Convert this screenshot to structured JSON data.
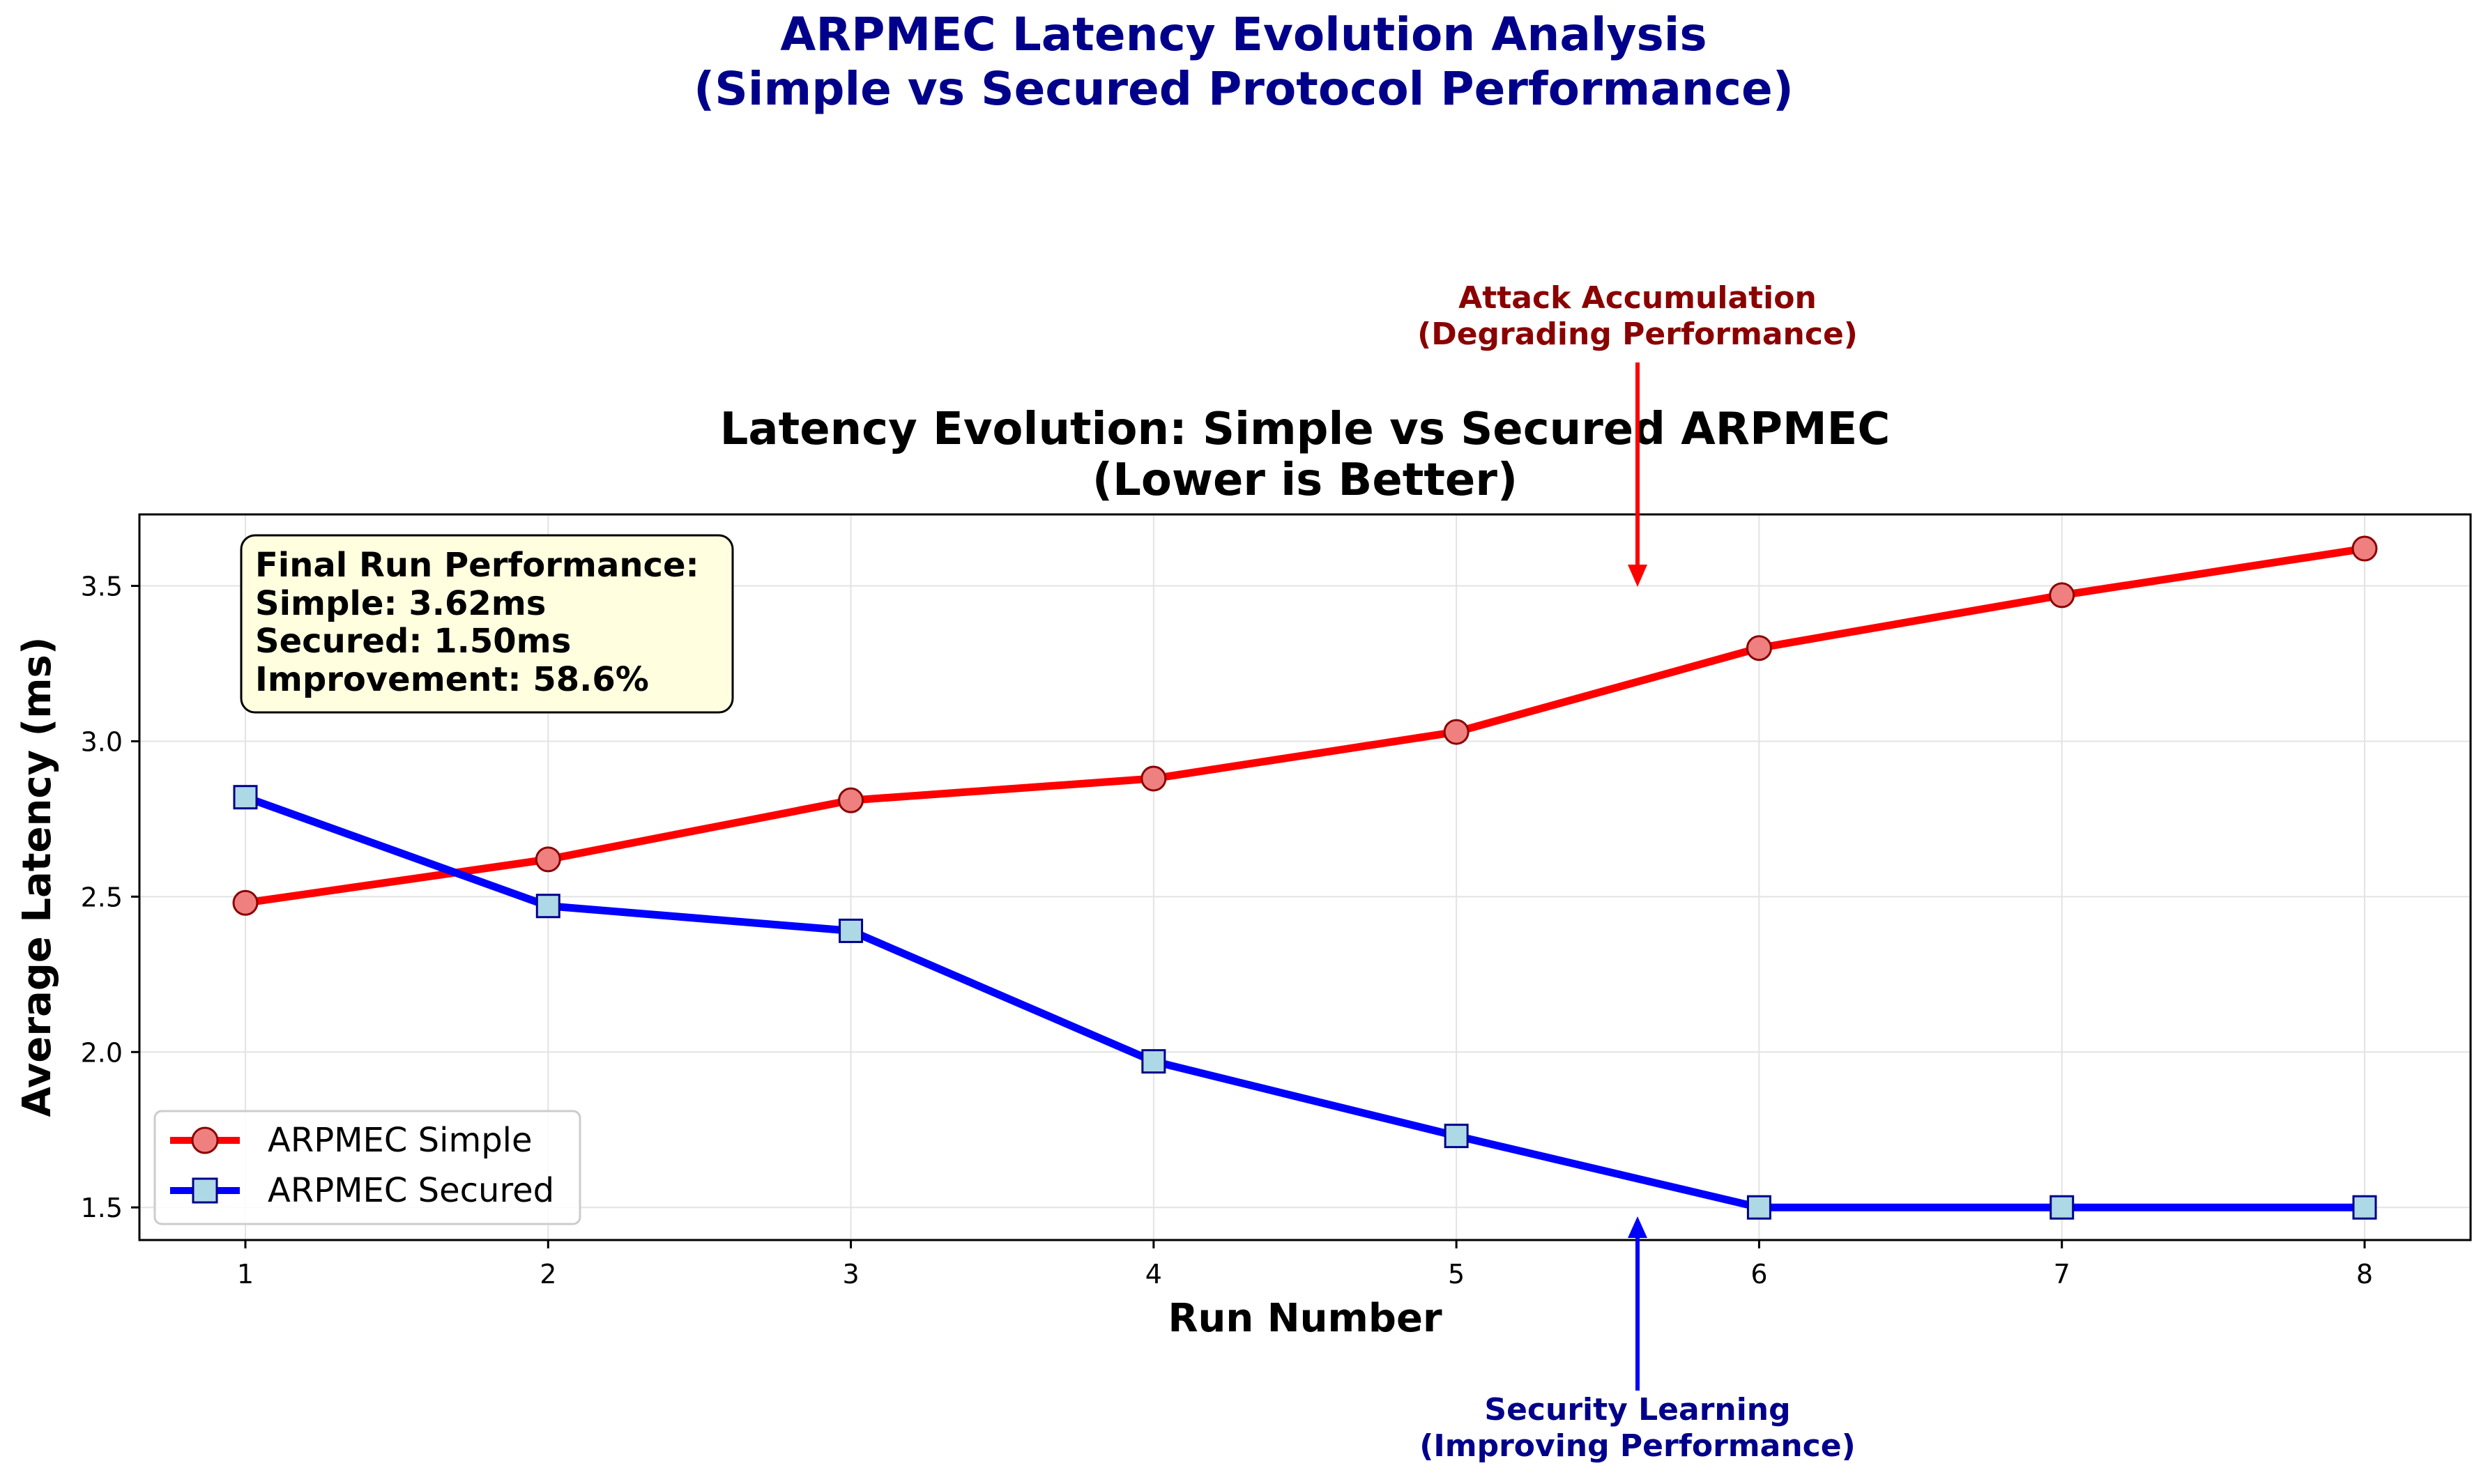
{
  "figure": {
    "suptitle_line1": "ARPMEC Latency Evolution Analysis",
    "suptitle_line2": "(Simple vs Secured Protocol Performance)",
    "title_color": "#00008b"
  },
  "chart_data": {
    "type": "line",
    "title_line1": "Latency Evolution: Simple vs Secured ARPMEC",
    "title_line2": "(Lower is Better)",
    "xlabel": "Run Number",
    "ylabel": "Average Latency (ms)",
    "x": [
      1,
      2,
      3,
      4,
      5,
      6,
      7,
      8
    ],
    "xlim": [
      0.65,
      8.35
    ],
    "ylim": [
      1.395,
      3.73
    ],
    "xticks": [
      1,
      2,
      3,
      4,
      5,
      6,
      7,
      8
    ],
    "yticks": [
      1.5,
      2.0,
      2.5,
      3.0,
      3.5
    ],
    "ytick_labels": [
      "1.5",
      "2.0",
      "2.5",
      "3.0",
      "3.5"
    ],
    "grid": true,
    "legend_position": "lower-left",
    "series": [
      {
        "name": "ARPMEC Simple",
        "values": [
          2.48,
          2.62,
          2.81,
          2.88,
          3.03,
          3.3,
          3.47,
          3.62
        ],
        "line_color": "#ff0000",
        "marker": "circle",
        "marker_fill": "#f08080",
        "marker_edge": "#8b0000"
      },
      {
        "name": "ARPMEC Secured",
        "values": [
          2.82,
          2.47,
          2.39,
          1.97,
          1.73,
          1.5,
          1.5,
          1.5
        ],
        "line_color": "#0000ff",
        "marker": "square",
        "marker_fill": "#add8e6",
        "marker_edge": "#00008b"
      }
    ],
    "info_box": {
      "line1": "Final Run Performance:",
      "line2": "Simple: 3.62ms",
      "line3": "Secured: 1.50ms",
      "line4": "Improvement: 58.6%",
      "background": "#ffffe0"
    },
    "annotations": [
      {
        "id": "attack",
        "line1": "Attack Accumulation",
        "line2": "(Degrading Performance)",
        "color": "#8b0000",
        "arrow_color": "#ff0000",
        "target_x": 5.6,
        "target_y": 3.5
      },
      {
        "id": "learning",
        "line1": "Security Learning",
        "line2": "(Improving Performance)",
        "color": "#00008b",
        "arrow_color": "#0000ff",
        "target_x": 5.6,
        "target_y": 1.5
      }
    ]
  }
}
